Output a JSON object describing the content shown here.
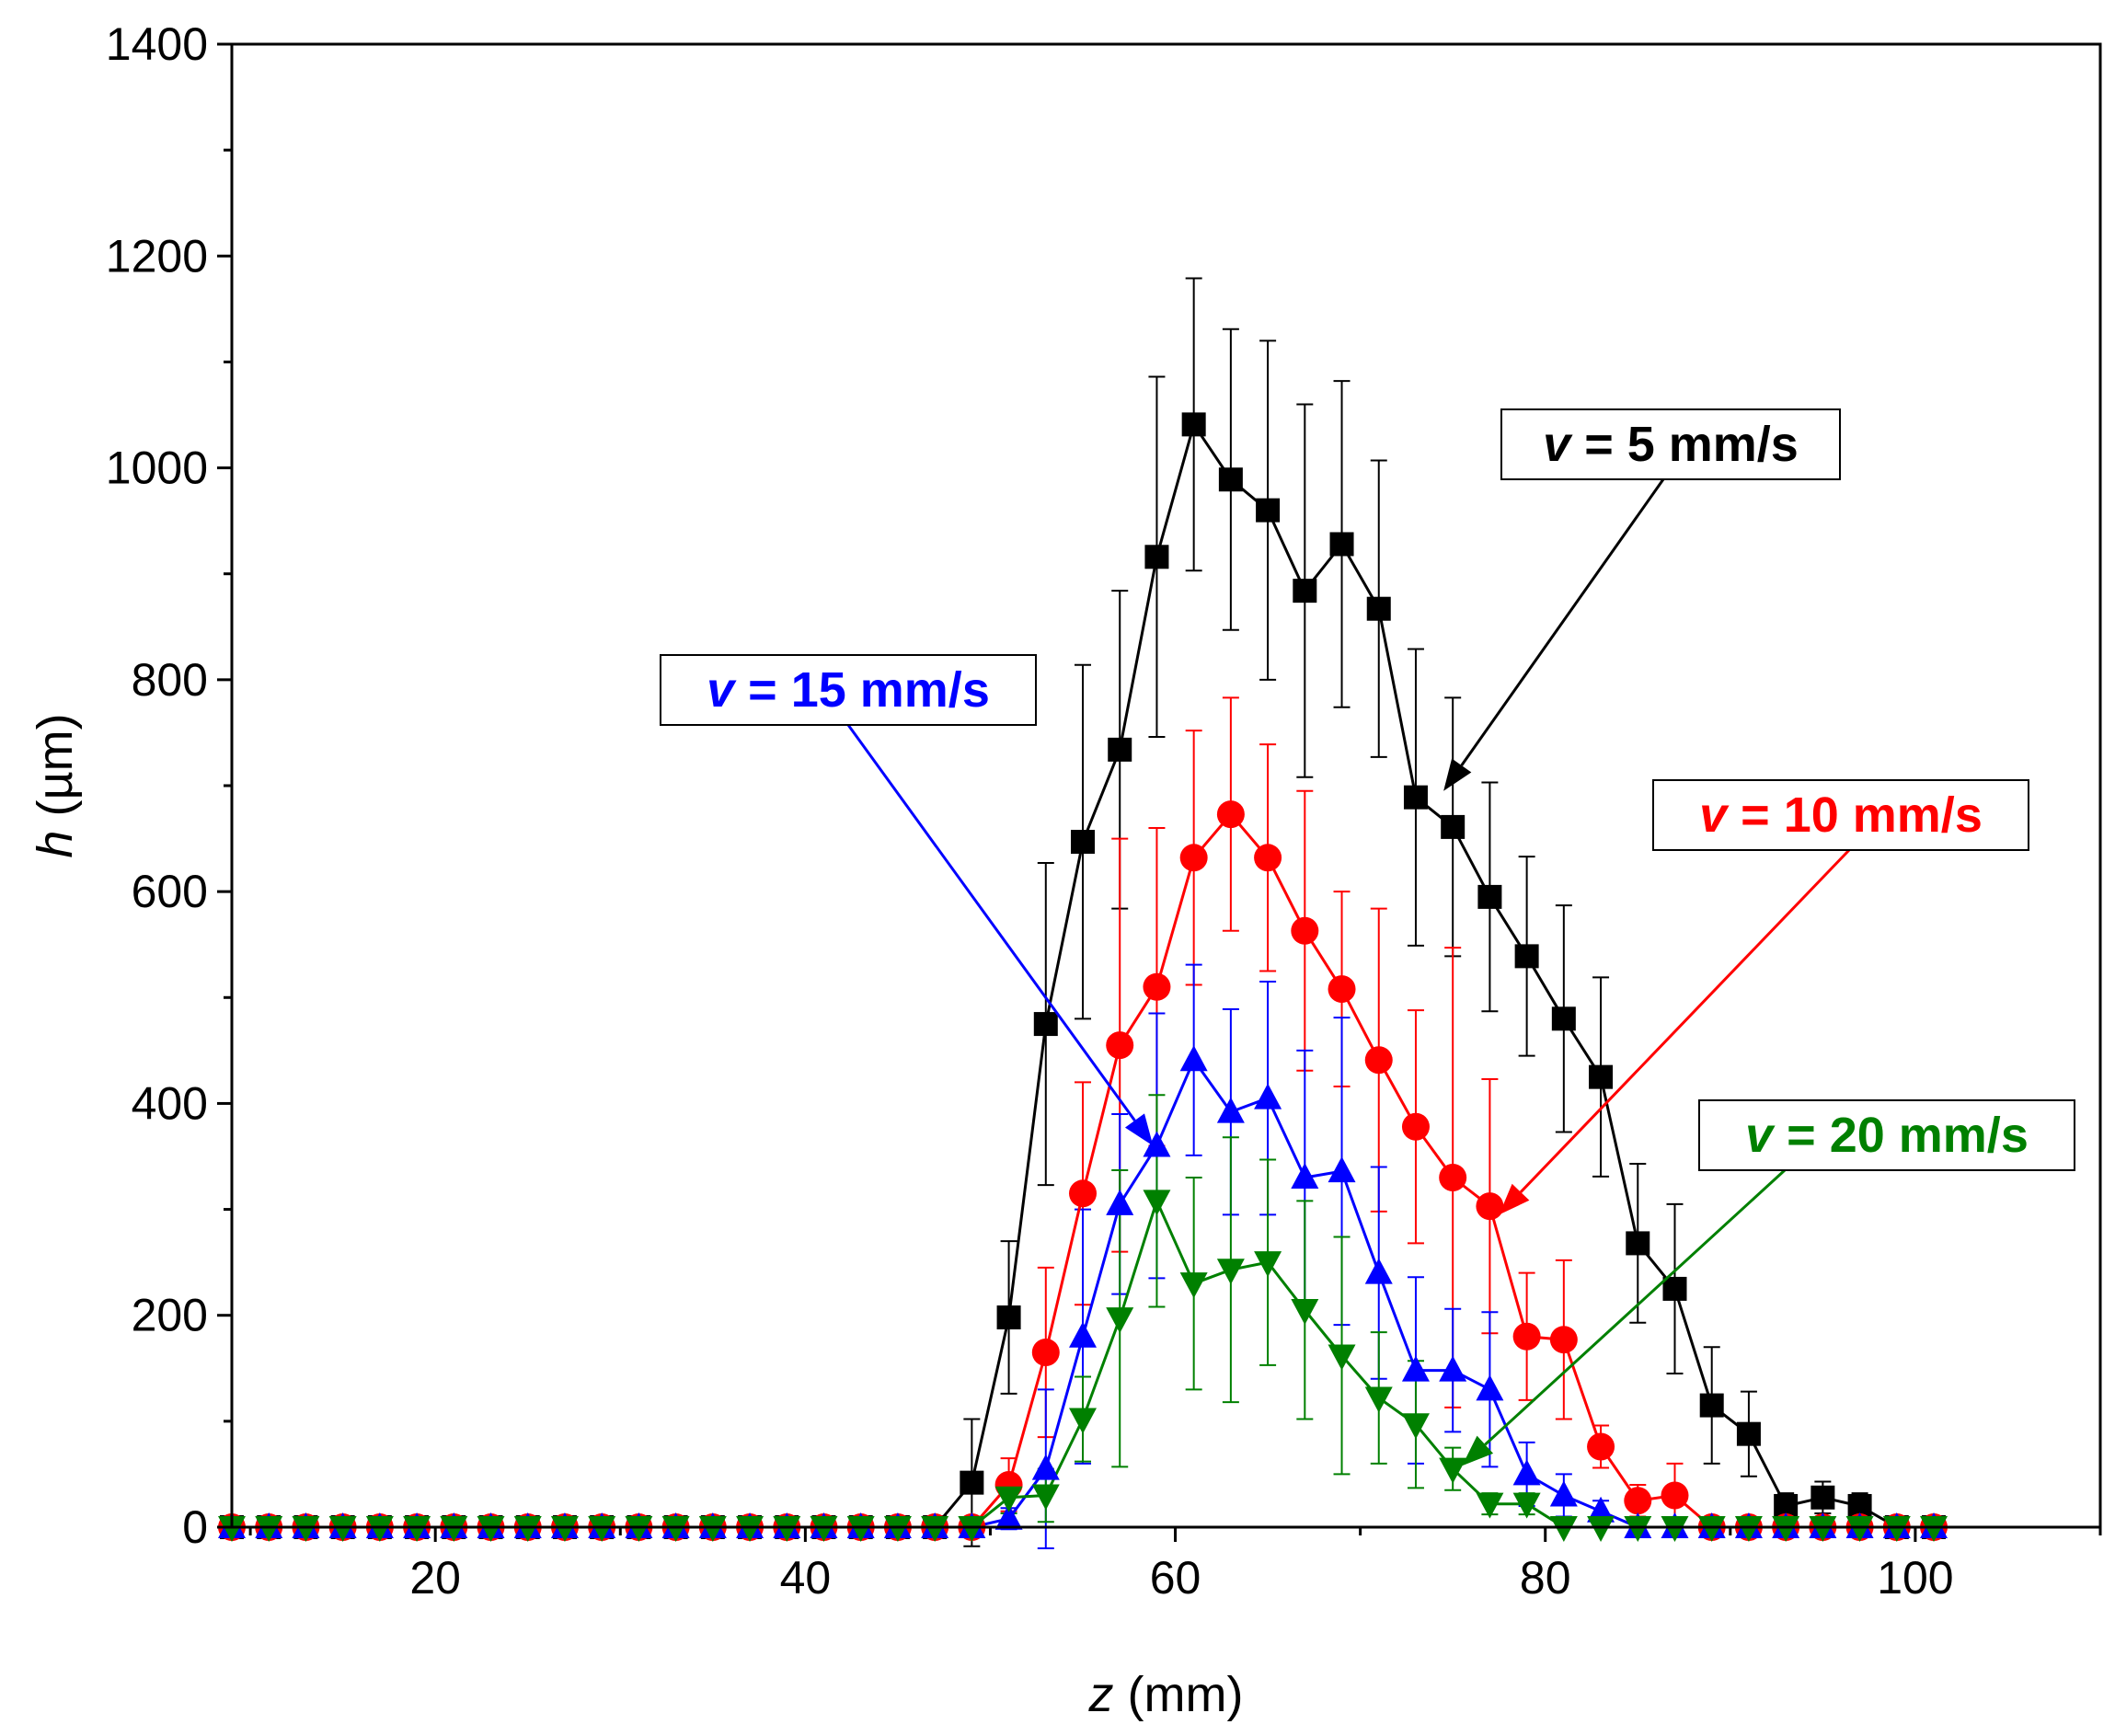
{
  "chart_data": {
    "type": "line",
    "title": "",
    "xlabel_var": "z",
    "xlabel_unit": " (mm)",
    "ylabel_var": "h",
    "ylabel_unit": " (µm)",
    "xlim": [
      9,
      110
    ],
    "ylim": [
      0,
      1400
    ],
    "x_ticks": [
      20,
      40,
      60,
      80,
      100
    ],
    "x_tick_labels": [
      "20",
      "40",
      "60",
      "80",
      "100"
    ],
    "y_ticks": [
      0,
      200,
      400,
      600,
      800,
      1000,
      1200,
      1400
    ],
    "y_tick_labels": [
      "0",
      "200",
      "400",
      "600",
      "800",
      "1000",
      "1200",
      "1400"
    ],
    "x_minor_step": 10,
    "y_minor_step": 100,
    "grid": false,
    "x": [
      9,
      11,
      13,
      15,
      17,
      19,
      21,
      23,
      25,
      27,
      29,
      31,
      33,
      35,
      37,
      39,
      41,
      43,
      45,
      47,
      49,
      51,
      53,
      55,
      57,
      59,
      61,
      63,
      65,
      67,
      69,
      71,
      73,
      75,
      77,
      79,
      81,
      83,
      85,
      87,
      89,
      91,
      93,
      95,
      97,
      99,
      101
    ],
    "series": [
      {
        "name": "v = 5 mm/s",
        "color": "#000000",
        "marker": "square",
        "values": [
          0,
          0,
          0,
          0,
          0,
          0,
          0,
          0,
          0,
          0,
          0,
          0,
          0,
          0,
          0,
          0,
          0,
          0,
          0,
          0,
          42,
          198,
          475,
          647,
          734,
          916,
          1041,
          989,
          960,
          884,
          928,
          867,
          689,
          661,
          595,
          539,
          480,
          425,
          268,
          225,
          115,
          88,
          20,
          28,
          20,
          0,
          0
        ],
        "errors": [
          0,
          0,
          0,
          0,
          0,
          0,
          0,
          0,
          0,
          0,
          0,
          0,
          0,
          0,
          0,
          0,
          0,
          0,
          0,
          0,
          60,
          72,
          152,
          167,
          150,
          170,
          138,
          142,
          160,
          176,
          154,
          140,
          140,
          122,
          108,
          94,
          107,
          94,
          75,
          80,
          55,
          40,
          12,
          15,
          12,
          0,
          0
        ]
      },
      {
        "name": "v = 10 mm/s",
        "color": "#ff0000",
        "marker": "circle",
        "values": [
          0,
          0,
          0,
          0,
          0,
          0,
          0,
          0,
          0,
          0,
          0,
          0,
          0,
          0,
          0,
          0,
          0,
          0,
          0,
          0,
          0,
          40,
          165,
          315,
          455,
          510,
          632,
          673,
          632,
          563,
          508,
          441,
          378,
          330,
          303,
          180,
          177,
          76,
          25,
          30,
          0,
          0,
          0,
          0,
          0,
          0,
          0
        ],
        "errors": [
          0,
          0,
          0,
          0,
          0,
          0,
          0,
          0,
          0,
          0,
          0,
          0,
          0,
          0,
          0,
          0,
          0,
          0,
          0,
          0,
          0,
          25,
          80,
          105,
          195,
          150,
          120,
          110,
          107,
          132,
          92,
          143,
          110,
          217,
          120,
          60,
          75,
          20,
          15,
          30,
          0,
          0,
          0,
          0,
          0,
          0,
          0
        ]
      },
      {
        "name": "v = 15 mm/s",
        "color": "#0000ff",
        "marker": "triangle-up",
        "values": [
          0,
          0,
          0,
          0,
          0,
          0,
          0,
          0,
          0,
          0,
          0,
          0,
          0,
          0,
          0,
          0,
          0,
          0,
          0,
          0,
          0,
          8,
          55,
          180,
          305,
          360,
          441,
          392,
          405,
          330,
          336,
          240,
          148,
          148,
          130,
          50,
          30,
          15,
          0,
          0,
          0,
          0,
          0,
          0,
          0,
          0,
          0
        ],
        "errors": [
          0,
          0,
          0,
          0,
          0,
          0,
          0,
          0,
          0,
          0,
          0,
          0,
          0,
          0,
          0,
          0,
          0,
          0,
          0,
          0,
          0,
          10,
          75,
          120,
          85,
          125,
          90,
          97,
          110,
          120,
          145,
          100,
          88,
          58,
          73,
          30,
          20,
          10,
          0,
          0,
          0,
          0,
          0,
          0,
          0,
          0,
          0
        ]
      },
      {
        "name": "v = 20 mm/s",
        "color": "#008000",
        "marker": "triangle-down",
        "values": [
          0,
          0,
          0,
          0,
          0,
          0,
          0,
          0,
          0,
          0,
          0,
          0,
          0,
          0,
          0,
          0,
          0,
          0,
          0,
          0,
          0,
          28,
          30,
          102,
          197,
          308,
          230,
          243,
          250,
          205,
          162,
          122,
          97,
          55,
          22,
          22,
          0,
          0,
          0,
          0,
          0,
          0,
          0,
          0,
          0,
          0,
          0
        ],
        "errors": [
          0,
          0,
          0,
          0,
          0,
          0,
          0,
          0,
          0,
          0,
          0,
          0,
          0,
          0,
          0,
          0,
          0,
          0,
          0,
          0,
          0,
          15,
          25,
          40,
          140,
          100,
          100,
          125,
          97,
          103,
          112,
          62,
          60,
          20,
          10,
          10,
          0,
          0,
          0,
          0,
          0,
          0,
          0,
          0,
          0,
          0,
          0
        ]
      }
    ],
    "annotations": [
      {
        "var": "v",
        "rest": " = 5 mm/s",
        "color": "#000000",
        "series": 0,
        "target_x": 74.5,
        "target_y": 695
      },
      {
        "var": "v",
        "rest": " = 10 mm/s",
        "color": "#ff0000",
        "series": 1,
        "target_x": 77.5,
        "target_y": 295
      },
      {
        "var": "v",
        "rest": " = 15 mm/s",
        "color": "#0000ff",
        "series": 2,
        "target_x": 58.8,
        "target_y": 360
      },
      {
        "var": "v",
        "rest": " = 20 mm/s",
        "color": "#008000",
        "series": 3,
        "target_x": 75.5,
        "target_y": 58
      }
    ]
  }
}
